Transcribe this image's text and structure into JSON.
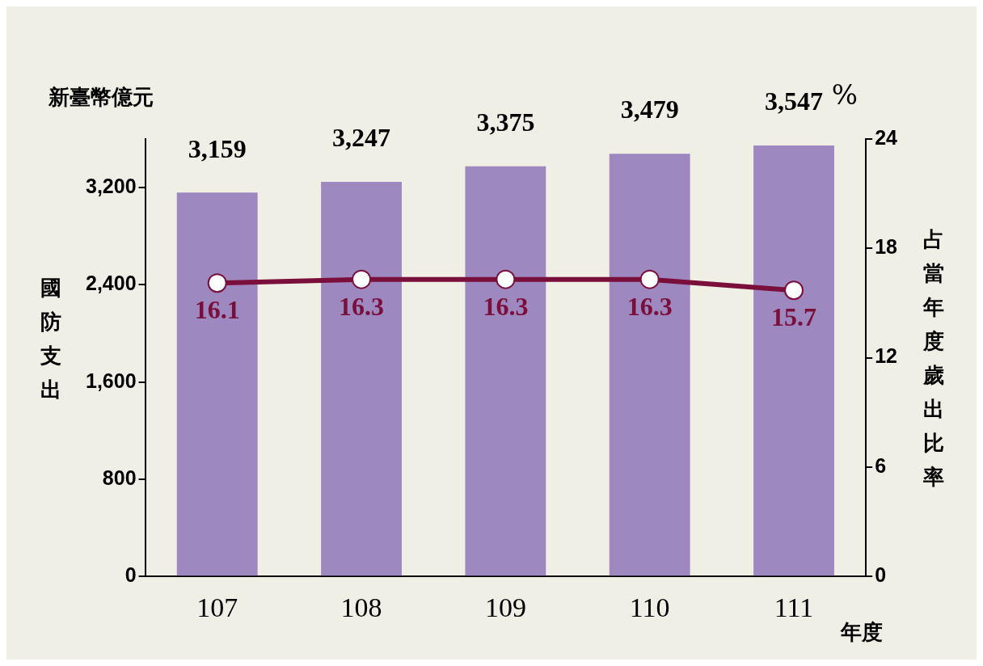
{
  "chart_data": {
    "type": "bar",
    "categories": [
      "107",
      "108",
      "109",
      "110",
      "111"
    ],
    "series": [
      {
        "color": "#9d88bf",
        "values": [
          3159,
          3247,
          3375,
          3479,
          3547
        ],
        "value_labels": [
          "3,159",
          "3,247",
          "3,375",
          "3,479",
          "3,547"
        ]
      },
      {
        "type": "line",
        "axis": "y2",
        "color": "#7a0f3c",
        "values": [
          16.1,
          16.3,
          16.3,
          16.3,
          15.7
        ]
      }
    ],
    "ylim": [
      0,
      3600
    ],
    "yticks": [
      0,
      800,
      {
        "value": 1600,
        "label": "1,600"
      },
      {
        "value": 2400,
        "label": "2,400"
      },
      {
        "value": 3200,
        "label": "3,200"
      }
    ],
    "y2lim": [
      0,
      24
    ],
    "y2ticks": [
      0,
      6,
      12,
      18,
      24
    ],
    "ylabel": "國防支出",
    "y2label": "占當年度歲出比率",
    "xlabel": "年度",
    "annotations": [
      "新臺幣億元",
      "%"
    ],
    "data_labels": true,
    "grid": false,
    "legend": false,
    "marker": "circle",
    "line_style": "solid"
  }
}
